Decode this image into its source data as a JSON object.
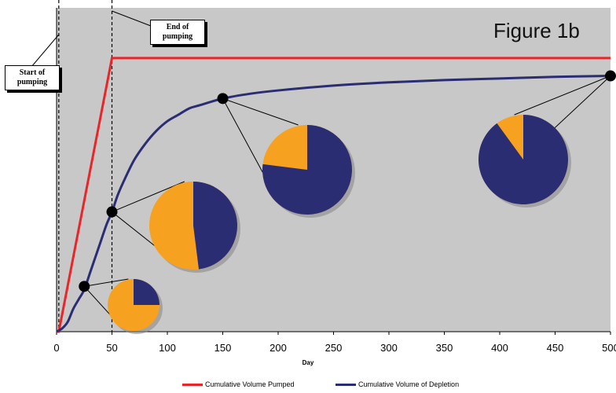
{
  "figure_label": "Figure 1b",
  "callouts": {
    "start": "Start of\npumping",
    "end": "End of\npumping"
  },
  "colors": {
    "pumped": "#e8262a",
    "depletion": "#2b2d73",
    "captured_slice": "#f6a11f",
    "plot_bg": "#c8c8c8"
  },
  "chart_data": {
    "type": "line",
    "xlabel": "Day",
    "ylabel": "",
    "xlim": [
      0,
      500
    ],
    "ylim": [
      0,
      1
    ],
    "xticks": [
      0,
      50,
      100,
      150,
      200,
      250,
      300,
      350,
      400,
      450,
      500
    ],
    "events": [
      {
        "name": "Start of pumping",
        "x": 2
      },
      {
        "name": "End of pumping",
        "x": 50
      }
    ],
    "series": [
      {
        "name": "Cumulative Volume Pumped",
        "color": "#e8262a",
        "x": [
          0,
          2,
          50,
          500
        ],
        "y": [
          0,
          0,
          0.845,
          0.845
        ]
      },
      {
        "name": "Cumulative Volume of Depletion",
        "color": "#2b2d73",
        "x": [
          0,
          5,
          10,
          15,
          20,
          25,
          30,
          35,
          40,
          45,
          50,
          55,
          60,
          70,
          80,
          90,
          100,
          110,
          120,
          130,
          150,
          175,
          200,
          250,
          300,
          350,
          400,
          450,
          500
        ],
        "y": [
          0,
          0.01,
          0.03,
          0.07,
          0.1,
          0.13,
          0.18,
          0.23,
          0.28,
          0.33,
          0.37,
          0.42,
          0.46,
          0.53,
          0.58,
          0.62,
          0.65,
          0.67,
          0.69,
          0.7,
          0.72,
          0.735,
          0.745,
          0.76,
          0.77,
          0.777,
          0.782,
          0.787,
          0.79
        ]
      }
    ],
    "markers": [
      {
        "x": 25,
        "y": 0.14,
        "depletion_fraction": 0.25
      },
      {
        "x": 50,
        "y": 0.37,
        "depletion_fraction": 0.48
      },
      {
        "x": 150,
        "y": 0.72,
        "depletion_fraction": 0.77
      },
      {
        "x": 500,
        "y": 0.79,
        "depletion_fraction": 0.9
      }
    ]
  }
}
